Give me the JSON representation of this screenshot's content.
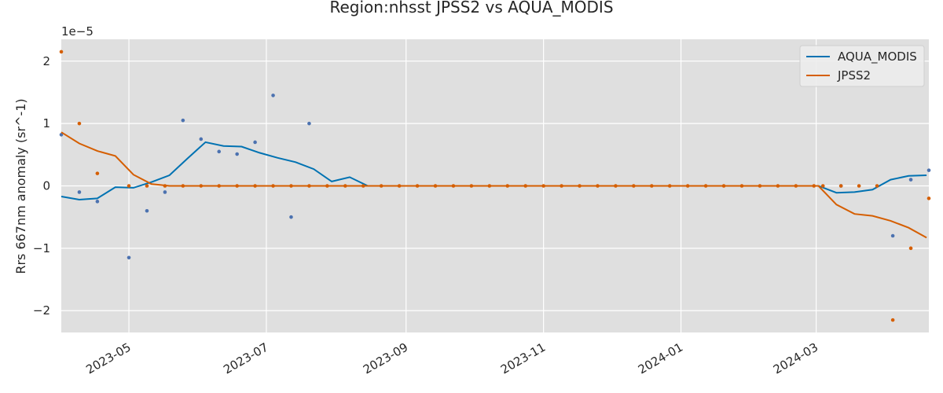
{
  "chart_data": {
    "type": "line",
    "title": "Region:nhsst JPSS2 vs AQUA_MODIS",
    "xlabel": "",
    "ylabel": "Rrs 667nm anomaly (sr^-1)",
    "y_offset_text": "1e−5",
    "ylim": [
      -2.35,
      2.35
    ],
    "xlim": [
      "2023-04-01",
      "2024-04-20"
    ],
    "x_ticks": [
      "2023-05-01",
      "2023-07-01",
      "2023-09-01",
      "2023-11-01",
      "2024-01-01",
      "2024-03-01"
    ],
    "x_tick_labels": [
      "2023-05",
      "2023-07",
      "2023-09",
      "2023-11",
      "2024-01",
      "2024-03"
    ],
    "y_ticks": [
      -2,
      -1,
      0,
      1,
      2
    ],
    "y_tick_labels": [
      "−2",
      "−1",
      "0",
      "1",
      "2"
    ],
    "grid": true,
    "legend_position": "top-right",
    "series": [
      {
        "name": "AQUA_MODIS",
        "color": "#0072B2",
        "point_color": "#4C72B0",
        "line_x": [
          "2023-04-01",
          "2023-04-09",
          "2023-04-17",
          "2023-04-25",
          "2023-05-03",
          "2023-05-11",
          "2023-05-19",
          "2023-05-27",
          "2023-06-04",
          "2023-06-12",
          "2023-06-20",
          "2023-06-28",
          "2023-07-06",
          "2023-07-14",
          "2023-07-22",
          "2023-07-30",
          "2023-08-07",
          "2023-08-15",
          "2023-08-23",
          "2023-08-31",
          "2023-09-08",
          "2023-09-16",
          "2023-09-24",
          "2023-10-02",
          "2023-10-10",
          "2023-10-18",
          "2023-10-26",
          "2023-11-03",
          "2023-11-11",
          "2023-11-19",
          "2023-11-27",
          "2023-12-05",
          "2023-12-13",
          "2023-12-21",
          "2023-12-29",
          "2024-01-06",
          "2024-01-14",
          "2024-01-22",
          "2024-01-30",
          "2024-02-07",
          "2024-02-15",
          "2024-02-23",
          "2024-03-02",
          "2024-03-10",
          "2024-03-18",
          "2024-03-26",
          "2024-04-03",
          "2024-04-11",
          "2024-04-19"
        ],
        "line_y": [
          -0.17,
          -0.22,
          -0.2,
          -0.02,
          -0.03,
          0.06,
          0.17,
          0.44,
          0.7,
          0.64,
          0.63,
          0.53,
          0.45,
          0.38,
          0.27,
          0.07,
          0.14,
          0,
          0,
          0,
          0,
          0,
          0,
          0,
          0,
          0,
          0,
          0,
          0,
          0,
          0,
          0,
          0,
          0,
          0,
          0,
          0,
          0,
          0,
          0,
          0,
          0,
          0,
          -0.11,
          -0.1,
          -0.06,
          0.1,
          0.16,
          0.17
        ],
        "points_x": [
          "2023-04-01",
          "2023-04-09",
          "2023-04-17",
          "2023-05-01",
          "2023-05-09",
          "2023-05-17",
          "2023-05-25",
          "2023-06-02",
          "2023-06-10",
          "2023-06-18",
          "2023-06-26",
          "2023-07-04",
          "2023-07-12",
          "2023-07-20",
          "2024-03-12",
          "2024-04-04",
          "2024-04-12",
          "2024-04-20"
        ],
        "points_y": [
          0.82,
          -0.1,
          -0.25,
          -1.15,
          -0.4,
          -0.1,
          1.05,
          0.75,
          0.55,
          0.51,
          0.7,
          1.45,
          -0.5,
          1.0,
          0,
          -0.8,
          0.1,
          0.25
        ]
      },
      {
        "name": "JPSS2",
        "color": "#D55E00",
        "point_color": "#D55E00",
        "line_x": [
          "2023-04-01",
          "2023-04-09",
          "2023-04-17",
          "2023-04-25",
          "2023-05-03",
          "2023-05-11",
          "2023-05-19",
          "2023-05-27",
          "2023-06-04",
          "2023-06-12",
          "2023-06-20",
          "2023-06-28",
          "2023-07-06",
          "2023-07-14",
          "2023-07-22",
          "2023-07-30",
          "2023-08-07",
          "2023-08-15",
          "2023-08-23",
          "2023-08-31",
          "2023-09-08",
          "2023-09-16",
          "2023-09-24",
          "2023-10-02",
          "2023-10-10",
          "2023-10-18",
          "2023-10-26",
          "2023-11-03",
          "2023-11-11",
          "2023-11-19",
          "2023-11-27",
          "2023-12-05",
          "2023-12-13",
          "2023-12-21",
          "2023-12-29",
          "2024-01-06",
          "2024-01-14",
          "2024-01-22",
          "2024-01-30",
          "2024-02-07",
          "2024-02-15",
          "2024-02-23",
          "2024-03-02",
          "2024-03-10",
          "2024-03-18",
          "2024-03-26",
          "2024-04-03",
          "2024-04-11",
          "2024-04-19"
        ],
        "line_y": [
          0.86,
          0.68,
          0.56,
          0.48,
          0.18,
          0.03,
          0,
          0,
          0,
          0,
          0,
          0,
          0,
          0,
          0,
          0,
          0,
          0,
          0,
          0,
          0,
          0,
          0,
          0,
          0,
          0,
          0,
          0,
          0,
          0,
          0,
          0,
          0,
          0,
          0,
          0,
          0,
          0,
          0,
          0,
          0,
          0,
          0,
          -0.3,
          -0.45,
          -0.48,
          -0.56,
          -0.67,
          -0.83
        ],
        "points_x": [
          "2023-04-01",
          "2023-04-09",
          "2023-04-17",
          "2023-05-01",
          "2023-05-09",
          "2023-05-17",
          "2023-05-25",
          "2023-06-02",
          "2023-06-10",
          "2023-06-18",
          "2023-06-26",
          "2023-07-04",
          "2023-07-12",
          "2023-07-20",
          "2023-07-28",
          "2023-08-05",
          "2023-08-13",
          "2023-08-21",
          "2023-08-29",
          "2023-09-06",
          "2023-09-14",
          "2023-09-22",
          "2023-09-30",
          "2023-10-08",
          "2023-10-16",
          "2023-10-24",
          "2023-11-01",
          "2023-11-09",
          "2023-11-17",
          "2023-11-25",
          "2023-12-03",
          "2023-12-11",
          "2023-12-19",
          "2023-12-27",
          "2024-01-04",
          "2024-01-12",
          "2024-01-20",
          "2024-01-28",
          "2024-02-05",
          "2024-02-13",
          "2024-02-21",
          "2024-02-29",
          "2024-03-04",
          "2024-03-12",
          "2024-03-20",
          "2024-03-28",
          "2024-04-04",
          "2024-04-12",
          "2024-04-20"
        ],
        "points_y": [
          2.15,
          1.0,
          0.2,
          0,
          0,
          0,
          0,
          0,
          0,
          0,
          0,
          0,
          0,
          0,
          0,
          0,
          0,
          0,
          0,
          0,
          0,
          0,
          0,
          0,
          0,
          0,
          0,
          0,
          0,
          0,
          0,
          0,
          0,
          0,
          0,
          0,
          0,
          0,
          0,
          0,
          0,
          0,
          0,
          0,
          0,
          0,
          -2.15,
          -1.0,
          -0.2
        ]
      }
    ]
  }
}
